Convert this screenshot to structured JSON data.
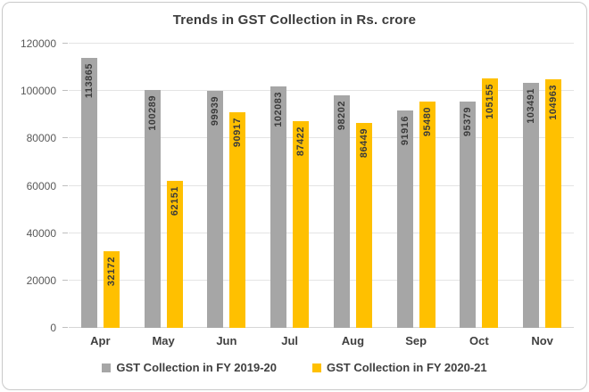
{
  "title": "Trends in GST Collection in Rs. crore",
  "chart_data": {
    "type": "bar",
    "title": "Trends in GST Collection in Rs. crore",
    "categories": [
      "Apr",
      "May",
      "Jun",
      "Jul",
      "Aug",
      "Sep",
      "Oct",
      "Nov"
    ],
    "series": [
      {
        "name": "GST Collection in FY 2019-20",
        "color": "#a6a6a6",
        "values": [
          113865,
          100289,
          99939,
          102083,
          98202,
          91916,
          95379,
          103491
        ]
      },
      {
        "name": "GST Collection in FY 2020-21",
        "color": "#ffc000",
        "values": [
          32172,
          62151,
          90917,
          87422,
          86449,
          95480,
          105155,
          104963
        ]
      }
    ],
    "xlabel": "",
    "ylabel": "",
    "ylim": [
      0,
      120000
    ],
    "yticks": [
      0,
      20000,
      40000,
      60000,
      80000,
      100000,
      120000
    ],
    "grid": true,
    "legend_position": "bottom"
  },
  "colors": {
    "title_text": "#3b3b3b",
    "axis_text": "#595959",
    "category_text": "#404040",
    "bar_label_text": "#3b3b3b",
    "gridline": "#e4e4e4",
    "card_border": "#c9c9c9"
  }
}
